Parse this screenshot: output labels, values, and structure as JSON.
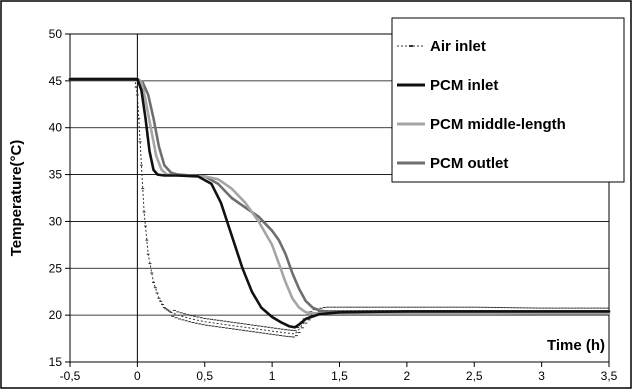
{
  "chart_data": {
    "type": "line",
    "title": "",
    "xlabel": "Time (h)",
    "ylabel": "Temperature(°C)",
    "xlim": [
      -0.5,
      3.5
    ],
    "ylim": [
      15,
      50
    ],
    "x_ticks": [
      -0.5,
      0,
      0.5,
      1,
      1.5,
      2,
      2.5,
      3,
      3.5
    ],
    "x_tick_labels": [
      "-0,5",
      "0",
      "0,5",
      "1",
      "1,5",
      "2",
      "2,5",
      "3",
      "3,5"
    ],
    "y_ticks": [
      15,
      20,
      25,
      30,
      35,
      40,
      45,
      50
    ],
    "y_tick_labels": [
      "15",
      "20",
      "25",
      "30",
      "35",
      "40",
      "45",
      "50"
    ],
    "grid": "horizontal",
    "legend": "top-right",
    "series": [
      {
        "name": "Air inlet",
        "color": "#333333",
        "style": "dotted-markers",
        "x": [
          -0.5,
          -0.02,
          0.0,
          0.02,
          0.05,
          0.08,
          0.12,
          0.16,
          0.2,
          0.25,
          0.3,
          0.4,
          0.5,
          0.6,
          0.7,
          0.8,
          0.9,
          1.0,
          1.1,
          1.17,
          1.2,
          1.25,
          1.3,
          1.4,
          1.5,
          1.7,
          2.0,
          2.5,
          3.0,
          3.5
        ],
        "y": [
          45.2,
          45.2,
          43.5,
          38.5,
          31.0,
          26.5,
          23.5,
          21.8,
          20.8,
          20.3,
          20.0,
          19.6,
          19.3,
          19.1,
          18.9,
          18.7,
          18.5,
          18.3,
          18.1,
          18.0,
          18.5,
          19.5,
          20.2,
          20.5,
          20.5,
          20.5,
          20.5,
          20.5,
          20.4,
          20.4
        ]
      },
      {
        "name": "PCM inlet",
        "color": "#111111",
        "style": "solid",
        "x": [
          -0.5,
          0.0,
          0.03,
          0.06,
          0.09,
          0.12,
          0.15,
          0.2,
          0.3,
          0.45,
          0.55,
          0.62,
          0.7,
          0.78,
          0.85,
          0.92,
          1.0,
          1.07,
          1.13,
          1.17,
          1.2,
          1.25,
          1.35,
          1.5,
          2.0,
          2.5,
          3.0,
          3.5
        ],
        "y": [
          45.2,
          45.2,
          44.0,
          41.0,
          37.5,
          35.5,
          35.0,
          34.9,
          34.9,
          34.8,
          34.0,
          32.0,
          28.5,
          25.0,
          22.5,
          20.8,
          19.8,
          19.2,
          18.8,
          18.7,
          19.0,
          19.6,
          20.1,
          20.3,
          20.4,
          20.4,
          20.4,
          20.4
        ]
      },
      {
        "name": "PCM middle-length",
        "color": "#a5a5a5",
        "style": "solid",
        "x": [
          -0.5,
          0.0,
          0.03,
          0.06,
          0.1,
          0.14,
          0.18,
          0.22,
          0.3,
          0.5,
          0.6,
          0.7,
          0.8,
          0.9,
          1.0,
          1.05,
          1.1,
          1.15,
          1.2,
          1.25,
          1.3,
          1.4,
          1.5,
          2.0,
          2.5,
          3.0,
          3.5
        ],
        "y": [
          45.2,
          45.2,
          44.8,
          43.0,
          40.0,
          37.0,
          35.5,
          35.0,
          34.9,
          34.8,
          34.5,
          33.5,
          32.0,
          30.0,
          27.5,
          25.5,
          23.5,
          21.8,
          20.8,
          20.3,
          20.2,
          20.2,
          20.2,
          20.2,
          20.2,
          20.2,
          20.2
        ]
      },
      {
        "name": "PCM outlet",
        "color": "#6e6e6e",
        "style": "solid",
        "x": [
          -0.5,
          0.0,
          0.04,
          0.08,
          0.12,
          0.16,
          0.2,
          0.25,
          0.3,
          0.5,
          0.6,
          0.7,
          0.8,
          0.9,
          1.0,
          1.05,
          1.1,
          1.15,
          1.2,
          1.25,
          1.3,
          1.35,
          1.4,
          1.5,
          2.0,
          2.5,
          3.0,
          3.5
        ],
        "y": [
          45.2,
          45.2,
          44.8,
          43.5,
          41.0,
          38.0,
          36.0,
          35.2,
          35.0,
          34.8,
          34.0,
          32.5,
          31.5,
          30.5,
          29.0,
          28.0,
          26.5,
          24.5,
          22.8,
          21.5,
          20.8,
          20.5,
          20.4,
          20.4,
          20.4,
          20.4,
          20.4,
          20.4
        ]
      }
    ]
  }
}
